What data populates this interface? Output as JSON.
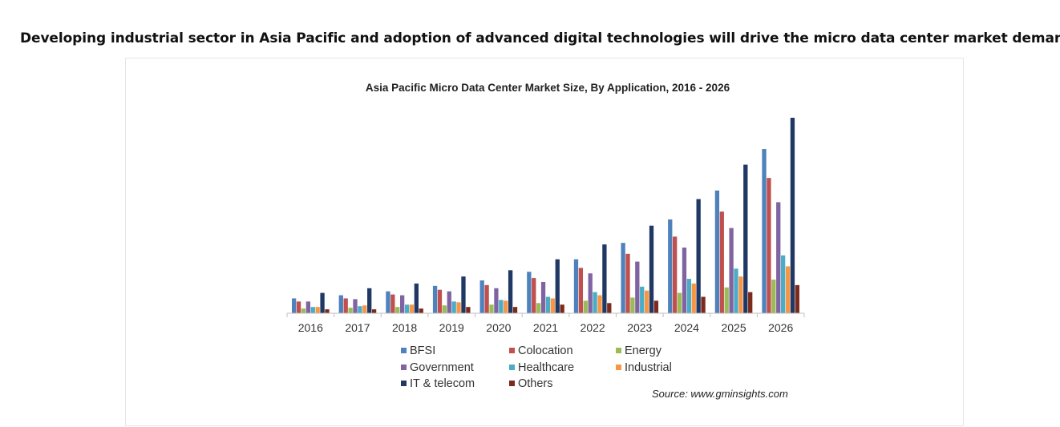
{
  "page": {
    "headline": "Developing industrial sector in Asia Pacific and adoption of advanced digital technologies will drive the micro data center market demand",
    "source": "Source: www.gminsights.com"
  },
  "chart_data": {
    "type": "bar",
    "title": "Asia Pacific Micro Data Center Market Size, By Application, 2016 - 2026",
    "xlabel": "",
    "ylabel": "",
    "categories": [
      "2016",
      "2017",
      "2018",
      "2019",
      "2020",
      "2021",
      "2022",
      "2023",
      "2024",
      "2025",
      "2026"
    ],
    "ylim": [
      0,
      250
    ],
    "grid": false,
    "legend_position": "bottom",
    "series": [
      {
        "name": "BFSI",
        "color": "#4F81BD",
        "values": [
          19,
          23,
          28,
          35,
          42,
          53,
          69,
          90,
          120,
          157,
          210
        ]
      },
      {
        "name": "Colocation",
        "color": "#C0504D",
        "values": [
          15,
          19,
          24,
          30,
          36,
          45,
          58,
          76,
          98,
          130,
          173
        ]
      },
      {
        "name": "Energy",
        "color": "#9BBB59",
        "values": [
          6,
          7,
          8,
          10,
          11,
          13,
          16,
          20,
          26,
          33,
          43
        ]
      },
      {
        "name": "Government",
        "color": "#8064A2",
        "values": [
          15,
          18,
          23,
          28,
          32,
          40,
          51,
          66,
          84,
          109,
          142
        ]
      },
      {
        "name": "Healthcare",
        "color": "#4BACC6",
        "values": [
          8,
          9,
          11,
          15,
          17,
          21,
          27,
          34,
          44,
          57,
          74
        ]
      },
      {
        "name": "Industrial",
        "color": "#F79646",
        "values": [
          8,
          10,
          11,
          14,
          16,
          19,
          23,
          29,
          38,
          47,
          60
        ]
      },
      {
        "name": "IT & telecom",
        "color": "#1F3864",
        "values": [
          26,
          32,
          38,
          47,
          55,
          69,
          88,
          112,
          146,
          190,
          250
        ]
      },
      {
        "name": "Others",
        "color": "#7B2A1B",
        "values": [
          5,
          5,
          6,
          8,
          8,
          11,
          13,
          16,
          21,
          27,
          36
        ]
      }
    ]
  }
}
